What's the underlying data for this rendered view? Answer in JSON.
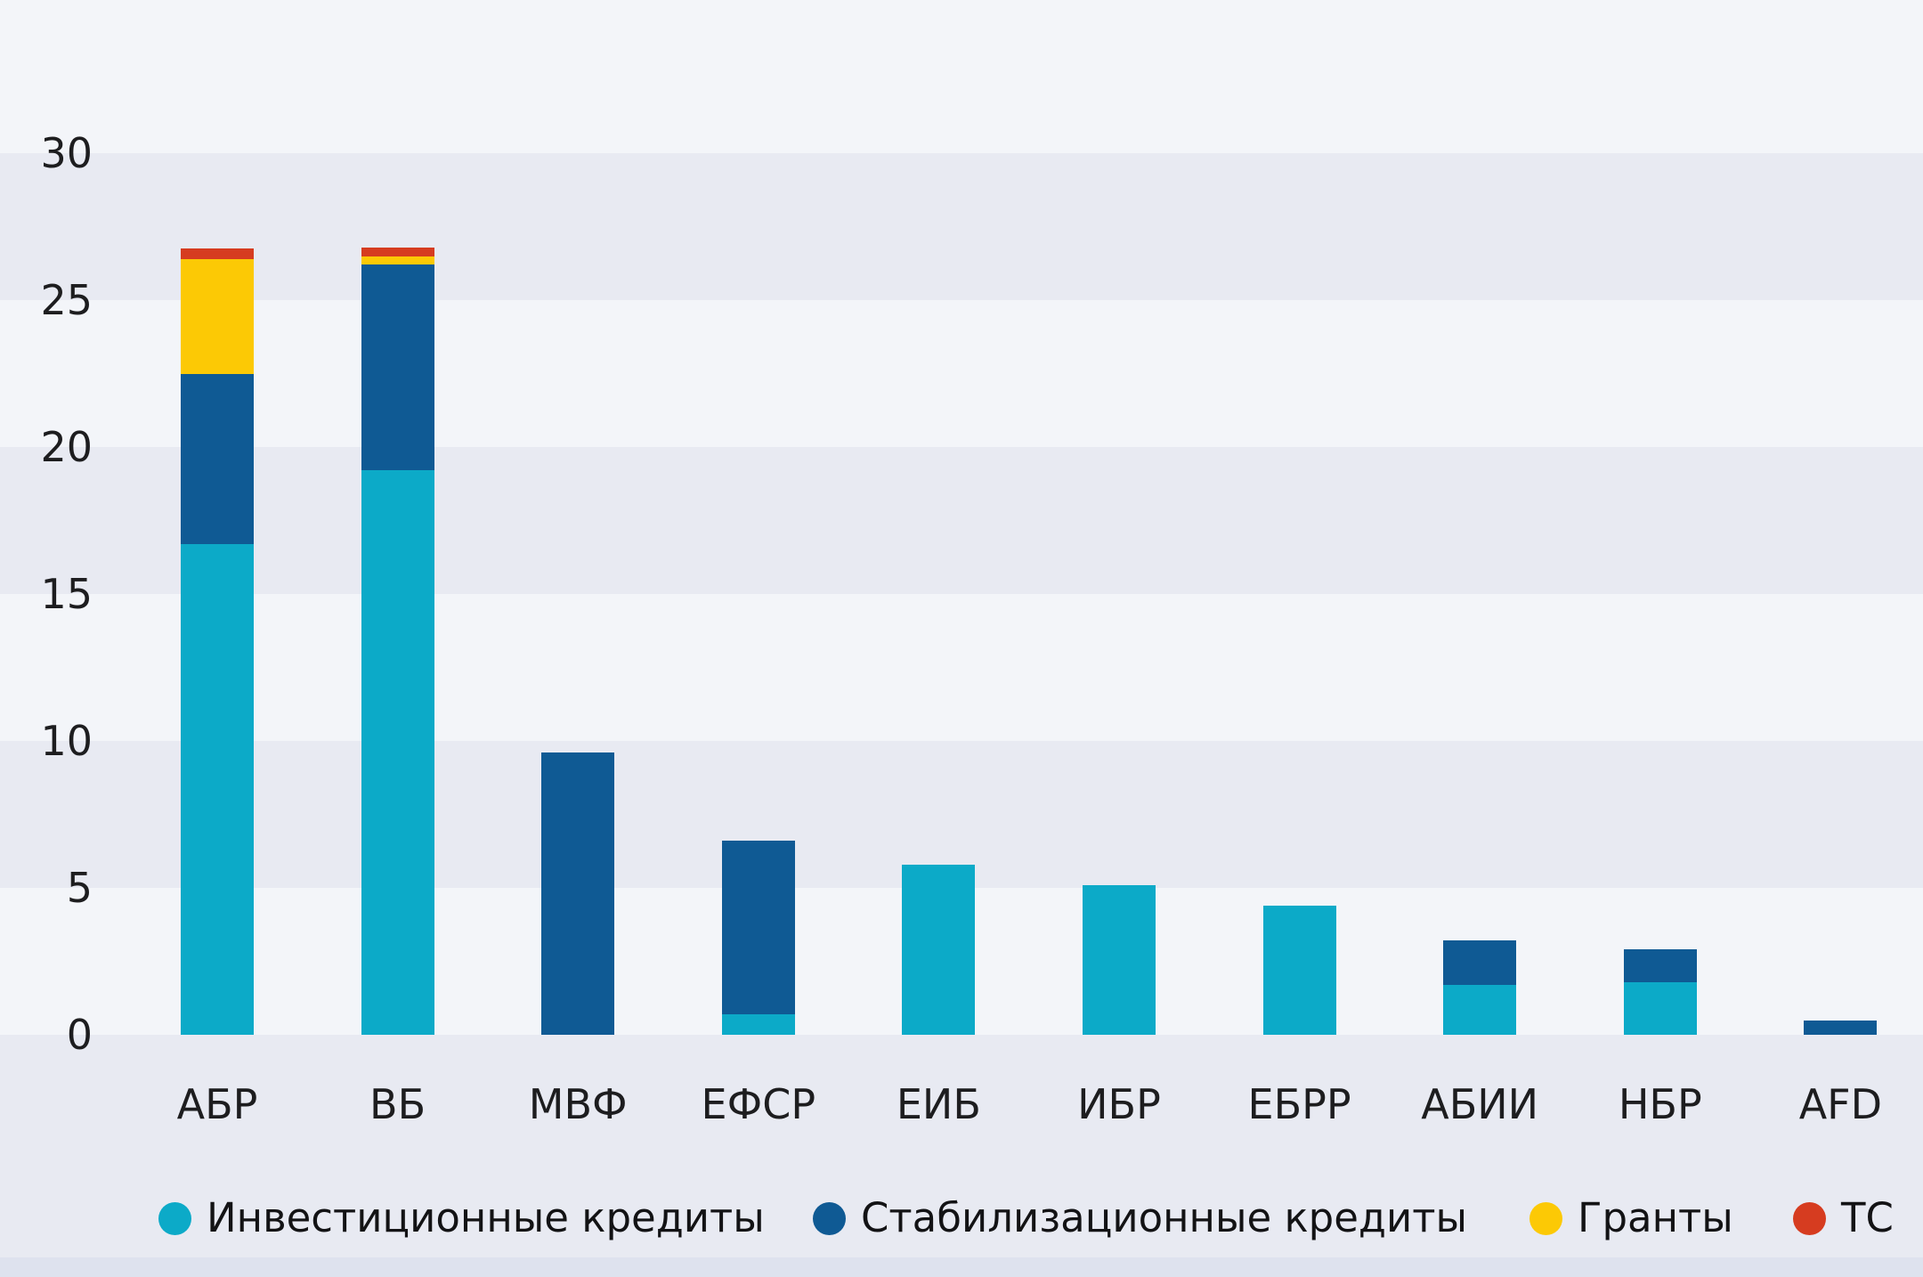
{
  "chart_data": {
    "type": "bar",
    "stacked": true,
    "title": "",
    "xlabel": "",
    "ylabel": "",
    "ylim": [
      0,
      30
    ],
    "yticks": [
      30,
      25,
      20,
      15,
      10,
      5,
      0
    ],
    "grid": "horizontal-bands",
    "legend_position": "bottom",
    "categories": [
      "АБР",
      "ВБ",
      "МВФ",
      "ЕФСР",
      "ЕИБ",
      "ИБР",
      "ЕБРР",
      "АБИИ",
      "НБР",
      "AFD"
    ],
    "series": [
      {
        "key": "investment-loans",
        "name": "Инвестиционные кредиты",
        "color": "#0caac8",
        "values": [
          16.7,
          19.2,
          0,
          0.7,
          5.8,
          5.1,
          4.4,
          1.7,
          1.8,
          0
        ]
      },
      {
        "key": "stabilization-loans",
        "name": "Стабилизационные кредиты",
        "color": "#0f5a94",
        "values": [
          5.8,
          7.0,
          9.6,
          5.9,
          0,
          0,
          0,
          1.5,
          1.1,
          0.5
        ]
      },
      {
        "key": "grants",
        "name": "Гранты",
        "color": "#fcc905",
        "values": [
          3.9,
          0.3,
          0,
          0,
          0,
          0,
          0,
          0,
          0,
          0
        ]
      },
      {
        "key": "tc",
        "name": "ТС",
        "color": "#d63c20",
        "values": [
          0.35,
          0.3,
          0,
          0,
          0,
          0,
          0,
          0,
          0,
          0
        ]
      }
    ]
  },
  "colors": {
    "background": "#f3f5f9",
    "band_dark": "#e8eaf2",
    "band_light": "#f3f5f9",
    "bottom_strip": "#dee2ee",
    "axis_text": "#1d1d1f",
    "legend_text": "#131315"
  }
}
